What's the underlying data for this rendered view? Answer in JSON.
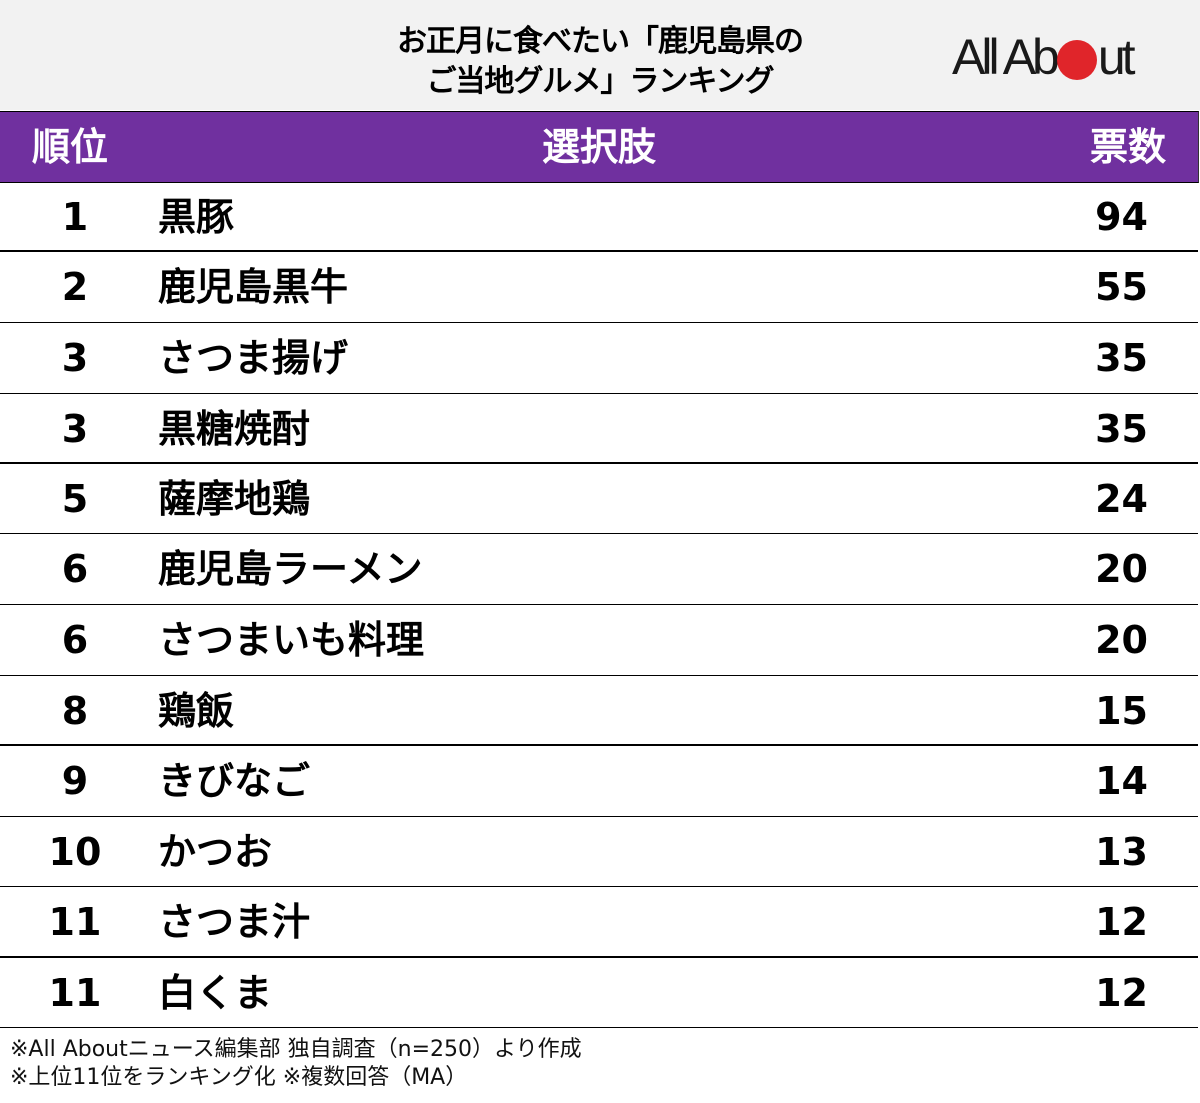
{
  "title": {
    "line1": "お正月に食べたい「鹿児島県の",
    "line2": "ご当地グルメ」ランキング"
  },
  "logo": {
    "left": "All Ab",
    "right": "ut",
    "dot_color": "#e0252a"
  },
  "colors": {
    "header_bg": "#70309f",
    "title_bg": "#f2f2f2",
    "header_text": "#ffffff"
  },
  "table": {
    "headers": {
      "rank": "順位",
      "item": "選択肢",
      "votes": "票数"
    },
    "rows": [
      {
        "rank": "1",
        "item": "黒豚",
        "votes": "94"
      },
      {
        "rank": "2",
        "item": "鹿児島黒牛",
        "votes": "55"
      },
      {
        "rank": "3",
        "item": "さつま揚げ",
        "votes": "35"
      },
      {
        "rank": "3",
        "item": "黒糖焼酎",
        "votes": "35"
      },
      {
        "rank": "5",
        "item": "薩摩地鶏",
        "votes": "24"
      },
      {
        "rank": "6",
        "item": "鹿児島ラーメン",
        "votes": "20"
      },
      {
        "rank": "6",
        "item": "さつまいも料理",
        "votes": "20"
      },
      {
        "rank": "8",
        "item": "鶏飯",
        "votes": "15"
      },
      {
        "rank": "9",
        "item": "きびなご",
        "votes": "14"
      },
      {
        "rank": "10",
        "item": "かつお",
        "votes": "13"
      },
      {
        "rank": "11",
        "item": "さつま汁",
        "votes": "12"
      },
      {
        "rank": "11",
        "item": "白くま",
        "votes": "12"
      }
    ]
  },
  "notes": {
    "line1": "※All Aboutニュース編集部 独自調査（n=250）より作成",
    "line2": "※上位11位をランキング化 ※複数回答（MA）"
  },
  "chart_data": {
    "type": "table",
    "title": "お正月に食べたい「鹿児島県のご当地グルメ」ランキング",
    "columns": [
      "順位",
      "選択肢",
      "票数"
    ],
    "categories": [
      "黒豚",
      "鹿児島黒牛",
      "さつま揚げ",
      "黒糖焼酎",
      "薩摩地鶏",
      "鹿児島ラーメン",
      "さつまいも料理",
      "鶏飯",
      "きびなご",
      "かつお",
      "さつま汁",
      "白くま"
    ],
    "ranks": [
      1,
      2,
      3,
      3,
      5,
      6,
      6,
      8,
      9,
      10,
      11,
      11
    ],
    "values": [
      94,
      55,
      35,
      35,
      24,
      20,
      20,
      15,
      14,
      13,
      12,
      12
    ],
    "notes": [
      "※All Aboutニュース編集部 独自調査（n=250）より作成",
      "※上位11位をランキング化 ※複数回答（MA）"
    ]
  }
}
